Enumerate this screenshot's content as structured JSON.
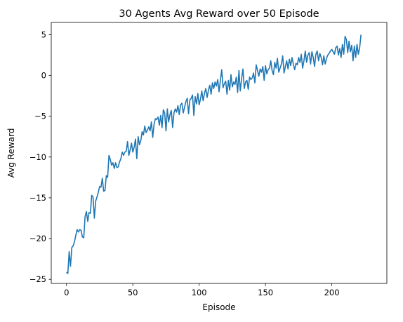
{
  "chart_data": {
    "type": "line",
    "title": "30 Agents Avg Reward over 50 Episode",
    "xlabel": "Episode",
    "ylabel": "Avg Reward",
    "xlim": [
      -11.5,
      241.5
    ],
    "ylim": [
      -25.5,
      6.5
    ],
    "x_ticks": [
      0,
      50,
      100,
      150,
      200
    ],
    "y_ticks": [
      -25,
      -20,
      -15,
      -10,
      -5,
      0,
      5
    ],
    "grid": false,
    "legend": "none",
    "color": "#1f77b4",
    "series": [
      {
        "values": [
          -24.1,
          -24.3,
          -21.6,
          -23.4,
          -21.1,
          -20.9,
          -20.4,
          -19.6,
          -18.9,
          -19.2,
          -18.9,
          -19.0,
          -19.8,
          -19.9,
          -17.3,
          -16.7,
          -17.9,
          -16.8,
          -16.9,
          -14.7,
          -14.9,
          -17.5,
          -15.4,
          -14.9,
          -14.3,
          -13.6,
          -13.7,
          -12.6,
          -14.2,
          -14.1,
          -12.3,
          -12.5,
          -9.8,
          -10.3,
          -11.0,
          -10.7,
          -11.4,
          -10.7,
          -11.3,
          -11.2,
          -10.6,
          -10.2,
          -9.4,
          -9.8,
          -9.4,
          -9.3,
          -8.1,
          -9.8,
          -9.1,
          -8.3,
          -9.4,
          -8.8,
          -7.8,
          -10.2,
          -7.5,
          -8.5,
          -8.0,
          -6.9,
          -7.3,
          -6.2,
          -7.0,
          -6.7,
          -6.3,
          -6.8,
          -5.7,
          -7.6,
          -6.0,
          -5.3,
          -5.4,
          -5.1,
          -6.1,
          -4.9,
          -6.4,
          -4.2,
          -4.6,
          -6.8,
          -4.1,
          -5.7,
          -4.8,
          -4.3,
          -6.4,
          -4.6,
          -4.1,
          -4.5,
          -3.7,
          -4.8,
          -3.6,
          -3.4,
          -4.6,
          -3.9,
          -3.2,
          -2.8,
          -4.7,
          -3.0,
          -2.8,
          -2.4,
          -4.9,
          -2.6,
          -3.5,
          -2.2,
          -3.6,
          -2.9,
          -1.9,
          -3.1,
          -2.2,
          -1.6,
          -2.7,
          -1.8,
          -1.2,
          -2.3,
          -0.9,
          -1.6,
          -0.8,
          -1.3,
          -0.5,
          -2.0,
          -0.6,
          0.7,
          -1.5,
          -1.0,
          -0.7,
          -2.3,
          -0.6,
          -1.8,
          0.1,
          -1.4,
          -0.8,
          -1.1,
          -0.2,
          -2.1,
          0.6,
          -1.9,
          -0.4,
          0.8,
          -1.6,
          -0.8,
          -0.6,
          -1.7,
          -0.2,
          -0.5,
          -0.3,
          0.3,
          -0.9,
          1.3,
          0.6,
          -0.1,
          0.8,
          0.4,
          1.1,
          -0.6,
          1.2,
          0.2,
          0.7,
          0.9,
          1.8,
          0.6,
          0.1,
          1.6,
          0.9,
          2.1,
          0.4,
          0.9,
          1.4,
          2.4,
          0.3,
          1.1,
          1.8,
          0.8,
          2.0,
          1.2,
          2.2,
          1.4,
          0.7,
          1.5,
          1.3,
          2.2,
          1.6,
          2.6,
          0.9,
          1.8,
          3.0,
          1.6,
          2.5,
          2.8,
          1.4,
          2.9,
          2.2,
          1.1,
          2.6,
          3.0,
          1.8,
          2.7,
          2.2,
          1.3,
          2.4,
          1.4,
          2.1,
          2.5,
          2.7,
          3.0,
          3.2,
          2.9,
          2.6,
          3.4,
          3.6,
          2.5,
          3.3,
          2.2,
          3.8,
          2.6,
          4.8,
          4.4,
          2.8,
          4.2,
          2.9,
          3.7,
          1.8,
          3.6,
          2.2,
          3.8,
          2.6,
          3.4,
          5.0
        ]
      }
    ]
  }
}
